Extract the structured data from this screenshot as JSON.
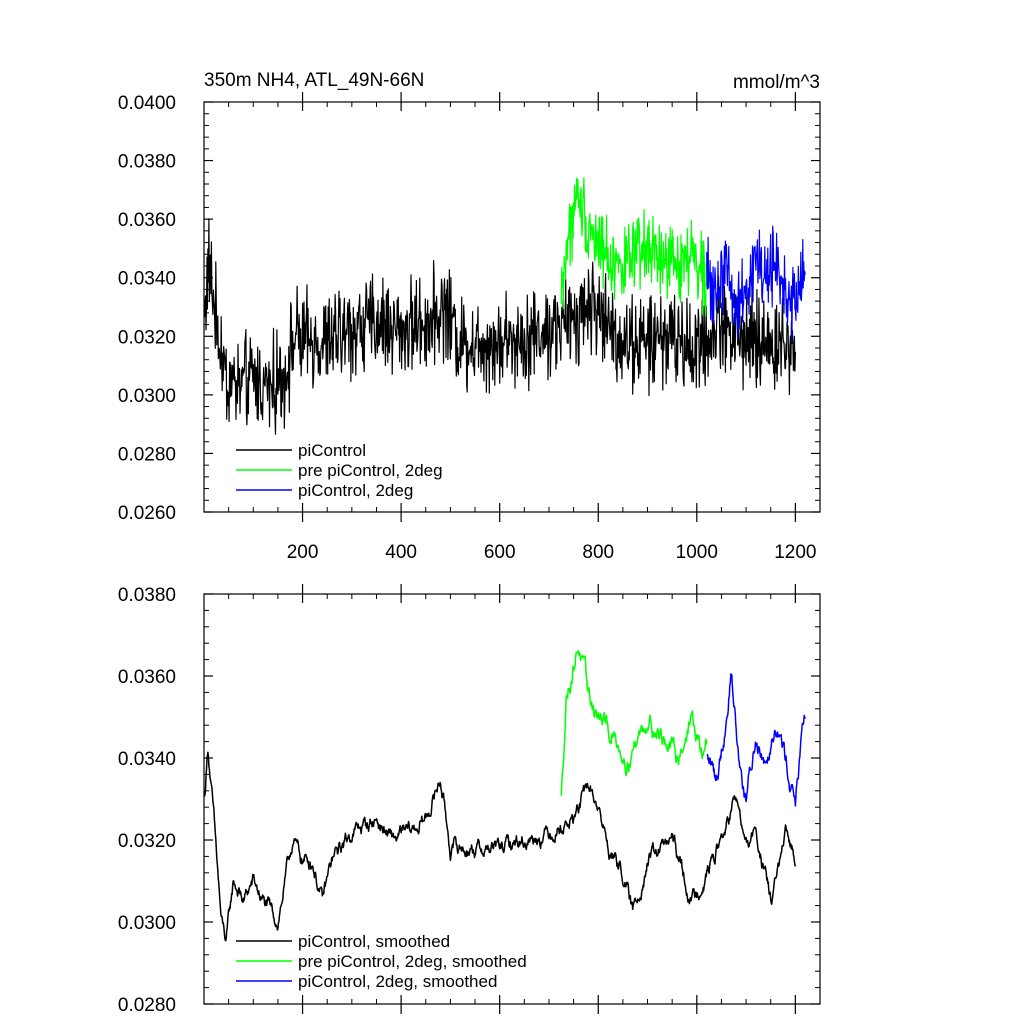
{
  "chart_data": [
    {
      "type": "line",
      "title": "350m NH4, ATL_49N-66N",
      "units": "mmol/m^3",
      "xlim": [
        0,
        1250
      ],
      "ylim": [
        0.026,
        0.04
      ],
      "y_ticks": [
        0.026,
        0.028,
        0.03,
        0.032,
        0.034,
        0.036,
        0.038,
        0.04
      ],
      "y_tick_labels": [
        "0.0260",
        "0.0280",
        "0.0300",
        "0.0320",
        "0.0340",
        "0.0360",
        "0.0380",
        "0.0400"
      ],
      "x_ticks": [
        200,
        400,
        600,
        800,
        1000,
        1200
      ],
      "x_tick_labels": [
        "200",
        "400",
        "600",
        "800",
        "1000",
        "1200"
      ],
      "legend_position": "bottom-left",
      "series": [
        {
          "name": "piControl",
          "color": "#000000",
          "x_range": [
            1,
            1200
          ],
          "anchors": [
            [
              1,
              0.0328
            ],
            [
              10,
              0.0345
            ],
            [
              25,
              0.0325
            ],
            [
              45,
              0.0305
            ],
            [
              70,
              0.0303
            ],
            [
              100,
              0.0305
            ],
            [
              130,
              0.0303
            ],
            [
              160,
              0.0305
            ],
            [
              185,
              0.032
            ],
            [
              200,
              0.0318
            ],
            [
              250,
              0.0318
            ],
            [
              300,
              0.0322
            ],
            [
              350,
              0.0325
            ],
            [
              400,
              0.0322
            ],
            [
              450,
              0.0325
            ],
            [
              490,
              0.033
            ],
            [
              520,
              0.0318
            ],
            [
              550,
              0.0318
            ],
            [
              600,
              0.0318
            ],
            [
              650,
              0.032
            ],
            [
              700,
              0.0322
            ],
            [
              750,
              0.0325
            ],
            [
              780,
              0.0332
            ],
            [
              800,
              0.0328
            ],
            [
              850,
              0.0318
            ],
            [
              900,
              0.0318
            ],
            [
              950,
              0.032
            ],
            [
              1000,
              0.0315
            ],
            [
              1050,
              0.0325
            ],
            [
              1100,
              0.0318
            ],
            [
              1150,
              0.0318
            ],
            [
              1200,
              0.0315
            ]
          ],
          "noise_amplitude": 0.0014
        },
        {
          "name": "pre piControl, 2deg",
          "color": "#00ff00",
          "x_range": [
            725,
            1020
          ],
          "anchors": [
            [
              725,
              0.0335
            ],
            [
              740,
              0.0355
            ],
            [
              760,
              0.0368
            ],
            [
              780,
              0.0358
            ],
            [
              800,
              0.0352
            ],
            [
              830,
              0.0345
            ],
            [
              860,
              0.0345
            ],
            [
              900,
              0.035
            ],
            [
              930,
              0.0345
            ],
            [
              960,
              0.0345
            ],
            [
              990,
              0.0348
            ],
            [
              1020,
              0.034
            ]
          ],
          "noise_amplitude": 0.0011
        },
        {
          "name": "piControl, 2deg",
          "color": "#0000ff",
          "x_range": [
            1020,
            1220
          ],
          "anchors": [
            [
              1020,
              0.034
            ],
            [
              1040,
              0.0335
            ],
            [
              1060,
              0.0345
            ],
            [
              1080,
              0.033
            ],
            [
              1100,
              0.0338
            ],
            [
              1120,
              0.0345
            ],
            [
              1140,
              0.034
            ],
            [
              1160,
              0.0345
            ],
            [
              1180,
              0.0335
            ],
            [
              1200,
              0.033
            ],
            [
              1220,
              0.0345
            ]
          ],
          "noise_amplitude": 0.0011
        }
      ]
    },
    {
      "type": "line",
      "xlim": [
        0,
        1250
      ],
      "ylim": [
        0.028,
        0.038
      ],
      "y_ticks": [
        0.028,
        0.03,
        0.032,
        0.034,
        0.036,
        0.038
      ],
      "y_tick_labels": [
        "0.0280",
        "0.0300",
        "0.0320",
        "0.0340",
        "0.0360",
        "0.0380"
      ],
      "legend_position": "bottom-left",
      "series": [
        {
          "name": "piControl, smoothed",
          "color": "#000000",
          "x_range": [
            1,
            1200
          ],
          "anchors": [
            [
              1,
              0.033
            ],
            [
              8,
              0.0343
            ],
            [
              20,
              0.0325
            ],
            [
              35,
              0.03
            ],
            [
              45,
              0.0295
            ],
            [
              60,
              0.031
            ],
            [
              80,
              0.0305
            ],
            [
              100,
              0.031
            ],
            [
              120,
              0.0305
            ],
            [
              150,
              0.03
            ],
            [
              180,
              0.032
            ],
            [
              200,
              0.0315
            ],
            [
              220,
              0.0315
            ],
            [
              240,
              0.0305
            ],
            [
              260,
              0.0315
            ],
            [
              300,
              0.0322
            ],
            [
              350,
              0.0325
            ],
            [
              380,
              0.032
            ],
            [
              420,
              0.0322
            ],
            [
              450,
              0.0325
            ],
            [
              480,
              0.0335
            ],
            [
              500,
              0.0318
            ],
            [
              550,
              0.0318
            ],
            [
              600,
              0.0318
            ],
            [
              650,
              0.032
            ],
            [
              700,
              0.0322
            ],
            [
              750,
              0.0325
            ],
            [
              780,
              0.0333
            ],
            [
              800,
              0.0328
            ],
            [
              820,
              0.0318
            ],
            [
              850,
              0.0312
            ],
            [
              870,
              0.0302
            ],
            [
              900,
              0.0315
            ],
            [
              950,
              0.032
            ],
            [
              990,
              0.0305
            ],
            [
              1020,
              0.0312
            ],
            [
              1050,
              0.032
            ],
            [
              1080,
              0.033
            ],
            [
              1100,
              0.0318
            ],
            [
              1120,
              0.0322
            ],
            [
              1150,
              0.0305
            ],
            [
              1180,
              0.032
            ],
            [
              1200,
              0.0316
            ]
          ],
          "noise_amplitude": 0.0004
        },
        {
          "name": "pre piControl, 2deg, smoothed",
          "color": "#00ff00",
          "x_range": [
            725,
            1020
          ],
          "anchors": [
            [
              725,
              0.033
            ],
            [
              735,
              0.0355
            ],
            [
              760,
              0.0368
            ],
            [
              780,
              0.0355
            ],
            [
              800,
              0.035
            ],
            [
              830,
              0.0345
            ],
            [
              860,
              0.034
            ],
            [
              900,
              0.035
            ],
            [
              930,
              0.0345
            ],
            [
              960,
              0.034
            ],
            [
              990,
              0.035
            ],
            [
              1010,
              0.034
            ],
            [
              1020,
              0.0344
            ]
          ],
          "noise_amplitude": 0.0005
        },
        {
          "name": "piControl, 2deg, smoothed",
          "color": "#0000ff",
          "x_range": [
            1020,
            1220
          ],
          "anchors": [
            [
              1020,
              0.034
            ],
            [
              1040,
              0.0335
            ],
            [
              1060,
              0.035
            ],
            [
              1070,
              0.0362
            ],
            [
              1085,
              0.034
            ],
            [
              1100,
              0.033
            ],
            [
              1120,
              0.0345
            ],
            [
              1140,
              0.034
            ],
            [
              1160,
              0.035
            ],
            [
              1180,
              0.034
            ],
            [
              1200,
              0.033
            ],
            [
              1220,
              0.035
            ]
          ],
          "noise_amplitude": 0.0005
        }
      ]
    }
  ]
}
